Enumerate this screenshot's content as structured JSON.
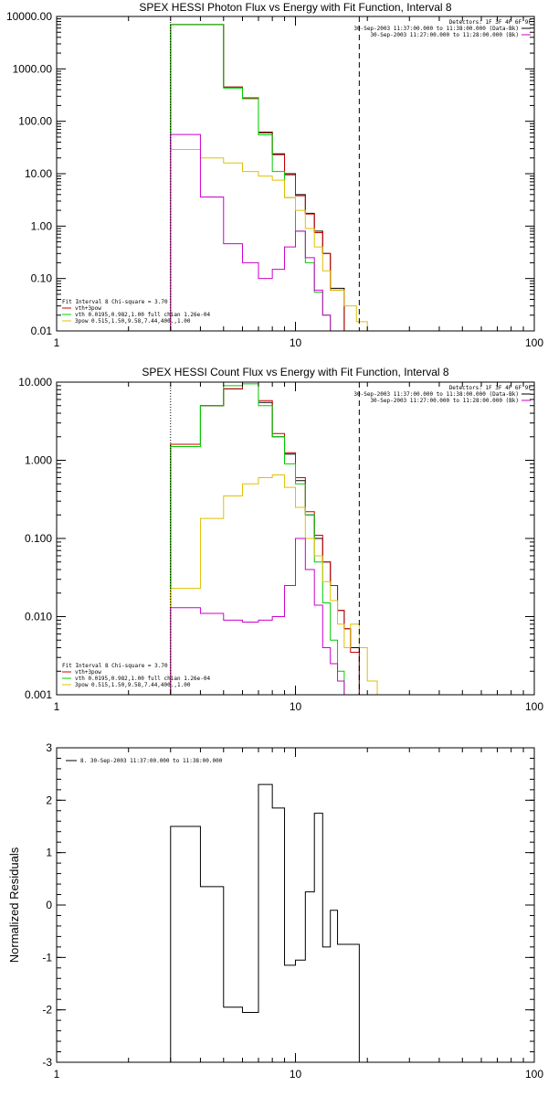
{
  "chart_data": [
    {
      "id": "photon",
      "type": "line",
      "title": "SPEX HESSI Photon Flux vs Energy with Fit Function, Interval 8",
      "xscale": "log",
      "yscale": "log",
      "xlim": [
        1,
        100
      ],
      "ylim": [
        0.01,
        10000
      ],
      "xticks": [
        1,
        10,
        100
      ],
      "xticklabels": [
        "1",
        "10",
        "100"
      ],
      "yticks": [
        0.01,
        0.1,
        1,
        10,
        100,
        1000,
        10000
      ],
      "yticklabels": [
        "0.01",
        "0.10",
        "1.00",
        "10.00",
        "100.00",
        "1000.00",
        "10000.00"
      ],
      "step": true,
      "edges": [
        3.0,
        4.0,
        5.0,
        6.0,
        7.0,
        8.0,
        9.0,
        10.0,
        11.0,
        12.0,
        13.0,
        14.0,
        16.0,
        18.0,
        20.0,
        22.0
      ],
      "series": [
        {
          "name": "",
          "color": "#000000",
          "values": [
            7000,
            7000,
            450,
            280,
            62,
            24,
            10,
            4.0,
            1.75,
            0.8,
            0.3,
            0.065,
            null,
            null,
            null
          ]
        },
        {
          "name": "vth+3pow",
          "color": "#cc0000",
          "values": [
            7000,
            7000,
            450,
            280,
            60,
            23,
            9.5,
            3.8,
            1.7,
            0.75,
            0.3,
            0.06,
            null,
            null,
            null
          ]
        },
        {
          "name": "vth 0.0195,0.982,1.00 full chian 1.26e-04",
          "color": "#00cc00",
          "values": [
            7000,
            7000,
            430,
            270,
            55,
            11,
            3.5,
            0.8,
            0.2,
            0.055,
            0.02,
            0.01,
            null,
            null,
            null
          ]
        },
        {
          "name": "3pow 0.515,1.50,9.58,7.44,400.,1.00",
          "color": "#e0c000",
          "values": [
            29,
            20,
            16,
            11,
            9,
            7.5,
            3.5,
            2.0,
            0.9,
            0.4,
            0.14,
            0.06,
            0.03,
            0.015,
            null
          ]
        },
        {
          "name": "",
          "color": "#cc00cc",
          "values": [
            56,
            3.6,
            0.46,
            0.2,
            0.1,
            0.15,
            0.4,
            0.8,
            0.25,
            0.06,
            0.02,
            0.01,
            null,
            null,
            null
          ]
        }
      ],
      "vlines": [
        {
          "x": 3.0,
          "style": "dotted",
          "color": "#000000"
        },
        {
          "x": 18.5,
          "style": "dashed",
          "color": "#000000"
        }
      ],
      "legend_top": [
        "Detectors: 1F 3F 4F 6F 9F",
        "30-Sep-2003 11:37:00.000 to 11:38:00.000 (Data-Bk)",
        "30-Sep-2003 11:27:00.000 to 11:28:00.000 (Bk)"
      ],
      "legend_bottom_title": "Fit Interval 8   Chi-square = 3.70",
      "legend_bottom": [
        {
          "text": "vth+3pow",
          "color": "#cc0000"
        },
        {
          "text": "vth 0.0195,0.982,1.00  full chian 1.26e-04",
          "color": "#00cc00"
        },
        {
          "text": "3pow  0.515,1.50,9.58,7.44,400.,1.00",
          "color": "#e0c000"
        }
      ]
    },
    {
      "id": "count",
      "type": "line",
      "title": "SPEX HESSI Count Flux vs Energy with Fit Function, Interval 8",
      "xscale": "log",
      "yscale": "log",
      "xlim": [
        1,
        100
      ],
      "ylim": [
        0.001,
        10
      ],
      "xticks": [
        1,
        10,
        100
      ],
      "xticklabels": [
        "1",
        "10",
        "100"
      ],
      "yticks": [
        0.001,
        0.01,
        0.1,
        1,
        10
      ],
      "yticklabels": [
        "0.001",
        "0.010",
        "0.100",
        "1.000",
        "10.000"
      ],
      "step": true,
      "edges": [
        3.0,
        4.0,
        5.0,
        6.0,
        7.0,
        8.0,
        9.0,
        10.0,
        11.0,
        12.0,
        13.0,
        14.0,
        15.0,
        16.0,
        17.0,
        18.5,
        20.0,
        22.0,
        25.0
      ],
      "series": [
        {
          "name": "",
          "color": "#000000",
          "values": [
            1.6,
            5.0,
            8.2,
            10.0,
            5.5,
            2.0,
            1.2,
            0.55,
            0.2,
            0.1,
            0.05,
            0.025,
            0.012,
            0.007,
            0.004,
            0.001,
            null,
            null
          ]
        },
        {
          "name": "vth+3pow",
          "color": "#cc0000",
          "values": [
            1.6,
            5.0,
            8.2,
            10.0,
            5.8,
            2.2,
            1.25,
            0.6,
            0.22,
            0.11,
            0.05,
            0.025,
            0.012,
            0.007,
            0.0035,
            0.001,
            null,
            null
          ]
        },
        {
          "name": "vth 0.0195,0.982,1.00 full chian 1.26e-04",
          "color": "#00cc00",
          "values": [
            1.5,
            5.0,
            9.0,
            9.5,
            5.0,
            2.0,
            0.9,
            0.5,
            0.2,
            0.05,
            0.015,
            0.005,
            0.002,
            0.001,
            null,
            null,
            null,
            null
          ]
        },
        {
          "name": "3pow 0.515,1.50,9.58,7.44,400.,1.00",
          "color": "#e0c000",
          "values": [
            0.023,
            0.18,
            0.35,
            0.5,
            0.6,
            0.65,
            0.45,
            0.25,
            0.1,
            0.06,
            0.028,
            0.016,
            0.008,
            0.004,
            0.008,
            0.004,
            0.0015,
            null
          ]
        },
        {
          "name": "",
          "color": "#cc00cc",
          "values": [
            0.013,
            0.011,
            0.009,
            0.0085,
            0.009,
            0.01,
            0.025,
            0.1,
            0.04,
            0.014,
            0.004,
            0.0025,
            0.0015,
            0.001,
            null,
            null,
            null,
            null
          ]
        }
      ],
      "vlines": [
        {
          "x": 3.0,
          "style": "dotted",
          "color": "#000000"
        },
        {
          "x": 18.5,
          "style": "dashed",
          "color": "#000000"
        }
      ],
      "legend_top": [
        "Detectors: 1F 3F 4F 6F 9F",
        "30-Sep-2003 11:37:00.000 to 11:38:00.000 (Data-Bk)",
        "30-Sep-2003 11:27:00.000 to 11:28:00.000 (Bk)"
      ],
      "legend_bottom_title": "Fit Interval 8   Chi-square = 3.70",
      "legend_bottom": [
        {
          "text": "vth+3pow",
          "color": "#cc0000"
        },
        {
          "text": "vth 0.0195,0.982,1.00  full chian 1.26e-04",
          "color": "#00cc00"
        },
        {
          "text": "3pow  0.515,1.50,9.58,7.44,400.,1.00",
          "color": "#e0c000"
        }
      ]
    },
    {
      "id": "residuals",
      "type": "line",
      "title": "",
      "ylabel": "Normalized  Residuals",
      "xscale": "log",
      "yscale": "linear",
      "xlim": [
        1,
        100
      ],
      "ylim": [
        -3,
        3
      ],
      "xticks": [
        1,
        10,
        100
      ],
      "xticklabels": [
        "1",
        "10",
        "100"
      ],
      "yticks": [
        -3,
        -2,
        -1,
        0,
        1,
        2,
        3
      ],
      "yticklabels": [
        "-3",
        "-2",
        "-1",
        "0",
        "1",
        "2",
        "3"
      ],
      "step": true,
      "edges": [
        3.0,
        4.0,
        5.0,
        6.0,
        7.0,
        8.0,
        9.0,
        10.0,
        11.0,
        12.0,
        13.0,
        14.0,
        15.0,
        16.0,
        17.0,
        18.5
      ],
      "series": [
        {
          "name": "8. 30-Sep-2003 11:37:00.000 to 11:38:00.000",
          "color": "#000000",
          "values": [
            1.5,
            0.35,
            -1.95,
            -2.05,
            2.3,
            1.85,
            -1.15,
            -1.05,
            0.25,
            1.75,
            -0.8,
            -0.1,
            -0.75,
            -0.75,
            -0.75
          ]
        }
      ],
      "vlines": [],
      "legend_top": [],
      "legend_bottom_title": "",
      "legend_bottom": [],
      "legend_left": [
        {
          "text": "8. 30-Sep-2003 11:37:00.000 to 11:38:00.000",
          "color": "#000000"
        }
      ]
    }
  ]
}
